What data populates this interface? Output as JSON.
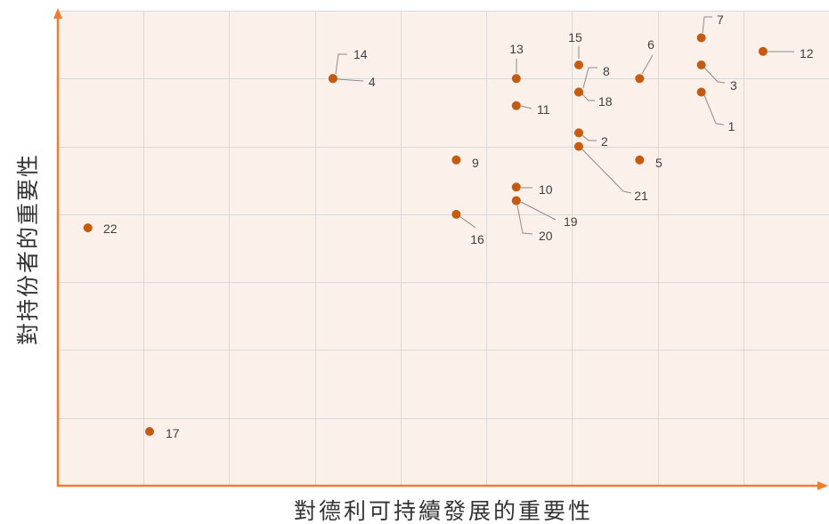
{
  "chart_data": {
    "type": "scatter",
    "xlabel": "對德利可持續發展的重要性",
    "ylabel": "對持份者的重要性",
    "xlim": [
      0,
      9
    ],
    "ylim": [
      0,
      7
    ],
    "grid": true,
    "legend": "none",
    "points": [
      {
        "label": "1",
        "x": 7.51,
        "y": 5.8
      },
      {
        "label": "2",
        "x": 6.08,
        "y": 5.2
      },
      {
        "label": "3",
        "x": 7.51,
        "y": 6.2
      },
      {
        "label": "4",
        "x": 3.21,
        "y": 6.0
      },
      {
        "label": "5",
        "x": 6.79,
        "y": 4.8
      },
      {
        "label": "6",
        "x": 6.79,
        "y": 6.0
      },
      {
        "label": "7",
        "x": 7.51,
        "y": 6.6
      },
      {
        "label": "8",
        "x": 6.08,
        "y": 5.8
      },
      {
        "label": "9",
        "x": 4.65,
        "y": 4.8
      },
      {
        "label": "10",
        "x": 5.35,
        "y": 4.4
      },
      {
        "label": "11",
        "x": 5.35,
        "y": 5.6
      },
      {
        "label": "12",
        "x": 8.23,
        "y": 6.4
      },
      {
        "label": "13",
        "x": 5.35,
        "y": 6.0
      },
      {
        "label": "14",
        "x": 3.21,
        "y": 6.0
      },
      {
        "label": "15",
        "x": 6.08,
        "y": 6.2
      },
      {
        "label": "16",
        "x": 4.65,
        "y": 4.0
      },
      {
        "label": "17",
        "x": 1.07,
        "y": 0.8
      },
      {
        "label": "18",
        "x": 6.08,
        "y": 5.8
      },
      {
        "label": "19",
        "x": 5.35,
        "y": 4.2
      },
      {
        "label": "20",
        "x": 5.35,
        "y": 4.2
      },
      {
        "label": "21",
        "x": 6.08,
        "y": 5.0
      },
      {
        "label": "22",
        "x": 0.35,
        "y": 3.8
      }
    ]
  },
  "colors": {
    "plot_background": "#fcf0ea",
    "gridline": "#d9d9d9",
    "axis": "#ed7d31",
    "point": "#c55a11",
    "data_label": "#3f3f3f",
    "leader_line": "#8c8c8c",
    "axis_title": "#333333"
  }
}
